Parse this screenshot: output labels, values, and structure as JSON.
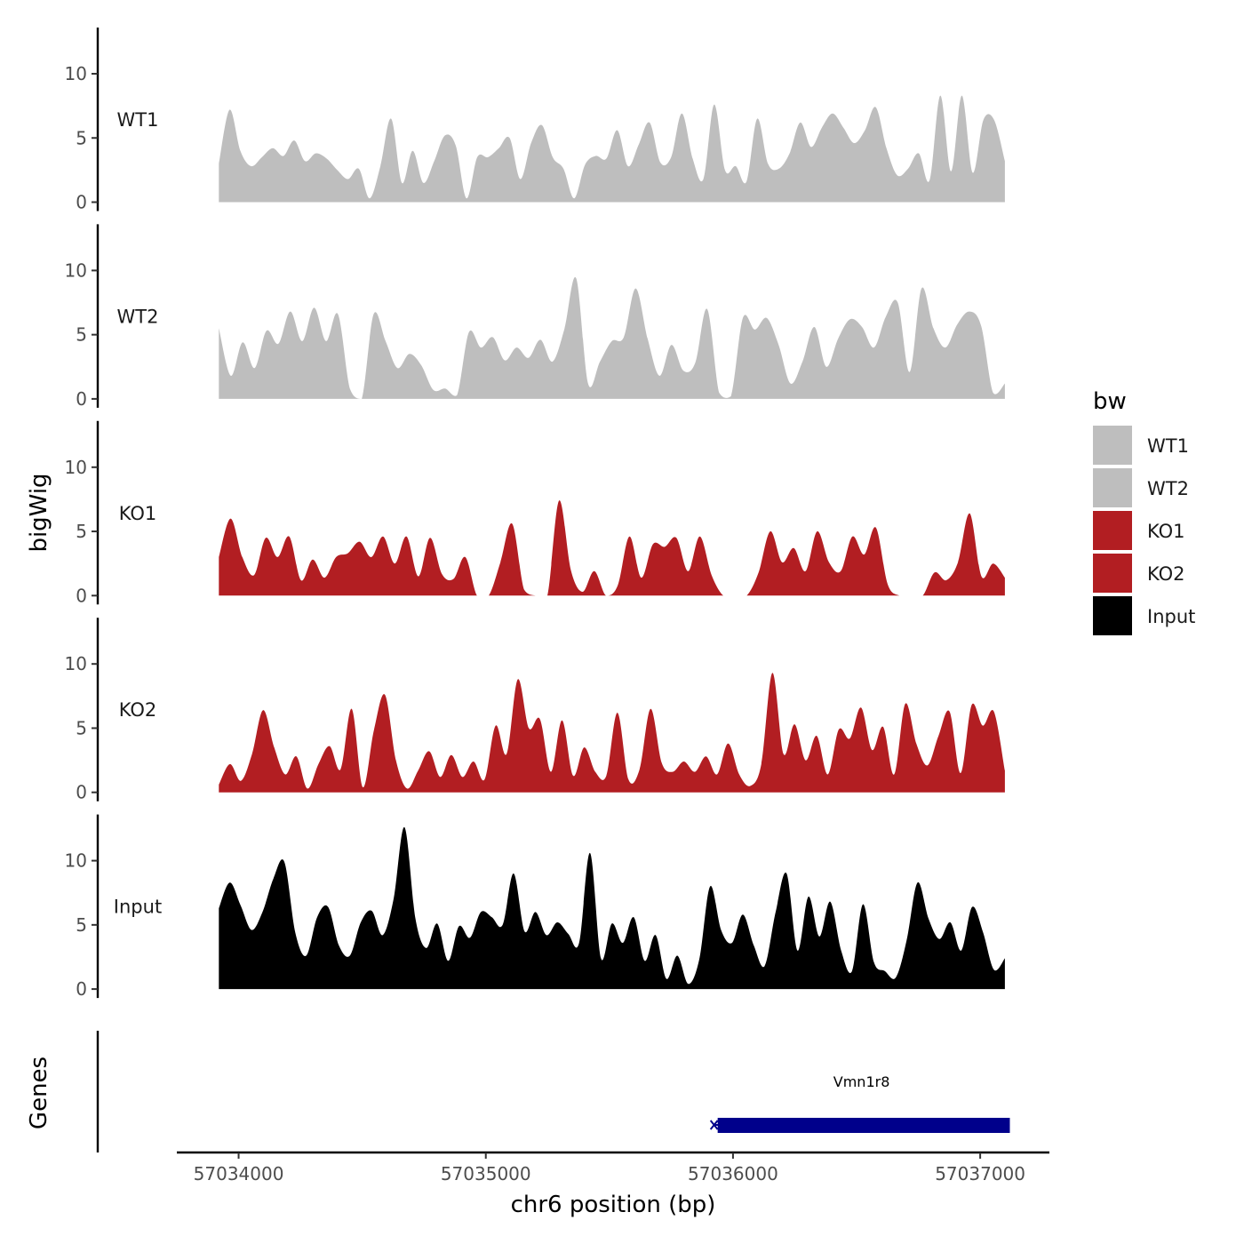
{
  "chart_data": {
    "type": "area",
    "title": "",
    "xlabel": "chr6 position (bp)",
    "ylabel": "bigWig",
    "genes_label": "Genes",
    "xlim": [
      57033750,
      57037280
    ],
    "data_x_range": [
      57033920,
      57037100
    ],
    "ylim": [
      0,
      14
    ],
    "x_ticks": [
      57034000,
      57035000,
      57036000,
      57037000
    ],
    "x_tick_labels": [
      "57034000",
      "57035000",
      "57036000",
      "57037000"
    ],
    "y_ticks": [
      0,
      5,
      10
    ],
    "y_tick_labels": [
      "0",
      "5",
      "10"
    ],
    "legend": {
      "title": "bw",
      "entries": [
        {
          "label": "WT1",
          "color": "#bebebe"
        },
        {
          "label": "WT2",
          "color": "#bebebe"
        },
        {
          "label": "KO1",
          "color": "#b21e22"
        },
        {
          "label": "KO2",
          "color": "#b21e22"
        },
        {
          "label": "Input",
          "color": "#000000"
        }
      ]
    },
    "series": [
      {
        "name": "WT1",
        "label": "WT1",
        "color": "#bebebe",
        "values": [
          3,
          7.2,
          4,
          2.8,
          3.5,
          4.2,
          3.6,
          4.8,
          3.2,
          3.8,
          3.4,
          2.5,
          1.8,
          2.6,
          0.3,
          2.8,
          6.5,
          1.5,
          4,
          1.5,
          3.2,
          5.2,
          4.4,
          0.3,
          3.5,
          3.5,
          4.2,
          5,
          1.8,
          4.6,
          6,
          3.5,
          2.6,
          0.3,
          2.9,
          3.6,
          3.4,
          5.6,
          2.8,
          4.5,
          6.2,
          3.1,
          3.5,
          6.9,
          3.4,
          1.8,
          7.6,
          2.5,
          2.8,
          1.6,
          6.5,
          3,
          2.6,
          3.8,
          6.2,
          4.3,
          5.8,
          6.9,
          5.8,
          4.6,
          5.6,
          7.4,
          4.2,
          2.1,
          2.6,
          3.8,
          1.7,
          8.3,
          2.4,
          8.3,
          2.3,
          6.4,
          6.4,
          3.2
        ]
      },
      {
        "name": "WT2",
        "label": "WT2",
        "color": "#bebebe",
        "values": [
          5.5,
          1.8,
          4.4,
          2.4,
          5.3,
          4.3,
          6.8,
          4.5,
          7.1,
          4.5,
          6.6,
          0.8,
          0,
          6.6,
          4.5,
          2.4,
          3.5,
          2.6,
          0.7,
          0.8,
          0.3,
          5.2,
          4,
          4.8,
          3,
          4,
          3.2,
          4.6,
          2.9,
          5.4,
          9.4,
          1.2,
          2.9,
          4.5,
          4.8,
          8.6,
          4.7,
          1.8,
          4.2,
          2.2,
          2.8,
          7,
          0.5,
          0.2,
          6.3,
          5.4,
          6.3,
          4.2,
          1.2,
          2.9,
          5.6,
          2.5,
          4.7,
          6.2,
          5.6,
          4,
          6.4,
          7.5,
          2.1,
          8.6,
          5.5,
          4,
          5.8,
          6.8,
          5.7,
          0.5,
          1.2
        ]
      },
      {
        "name": "KO1",
        "label": "KO1",
        "color": "#b21e22",
        "values": [
          3,
          6,
          3,
          1.6,
          4.5,
          3,
          4.6,
          1.2,
          2.8,
          1.4,
          3,
          3.3,
          4.2,
          3,
          4.6,
          2.5,
          4.6,
          1.5,
          4.5,
          1.7,
          1.3,
          3,
          0,
          0,
          2.6,
          5.6,
          0.5,
          0,
          0,
          7.4,
          2,
          0.3,
          1.9,
          0,
          0.8,
          4.6,
          1.4,
          4,
          3.8,
          4.5,
          1.9,
          4.6,
          1.6,
          0,
          0,
          0,
          1.8,
          5,
          2.6,
          3.7,
          1.9,
          5,
          2.6,
          1.9,
          4.6,
          3.2,
          5.3,
          0.9,
          0,
          0,
          0,
          1.8,
          1.2,
          2.6,
          6.4,
          1.5,
          2.5,
          1.4
        ]
      },
      {
        "name": "KO2",
        "label": "KO2",
        "color": "#b21e22",
        "values": [
          0.6,
          2.2,
          0.9,
          3,
          6.4,
          3.5,
          1.4,
          2.8,
          0.3,
          2.2,
          3.6,
          1.8,
          6.5,
          0.4,
          4.8,
          7.6,
          2.5,
          0.3,
          1.7,
          3.2,
          1.2,
          2.9,
          1.2,
          2.4,
          1,
          5.2,
          3,
          8.8,
          5,
          5.7,
          1.6,
          5.6,
          1.3,
          3.5,
          1.6,
          1.3,
          6.2,
          1,
          1.8,
          6.5,
          2.3,
          1.6,
          2.4,
          1.6,
          2.8,
          1.4,
          3.8,
          1.4,
          0.5,
          2.2,
          9.3,
          3,
          5.3,
          2.5,
          4.4,
          1.4,
          4.9,
          4.2,
          6.6,
          3.3,
          5.1,
          1.4,
          6.9,
          3.8,
          2.1,
          4.4,
          6.3,
          1.5,
          6.8,
          5.2,
          6.3,
          1.7
        ]
      },
      {
        "name": "Input",
        "label": "Input",
        "color": "#000000",
        "values": [
          6.3,
          8.3,
          6.5,
          4.6,
          6,
          8.6,
          9.9,
          4.4,
          2.6,
          5.6,
          6.4,
          3.4,
          2.6,
          5.2,
          6.1,
          4.2,
          7,
          12.6,
          5.5,
          3.2,
          5.1,
          2.2,
          4.9,
          4,
          6,
          5.6,
          5,
          9,
          4.5,
          6,
          4.2,
          5.2,
          4.3,
          3.6,
          10.6,
          2.4,
          5.1,
          3.6,
          5.6,
          2.2,
          4.2,
          0.8,
          2.6,
          0.4,
          2.3,
          8,
          4.6,
          3.6,
          5.8,
          3.4,
          1.8,
          6,
          9,
          3,
          7.2,
          4.1,
          6.8,
          3,
          1.4,
          6.6,
          2.1,
          1.4,
          0.9,
          3.8,
          8.3,
          5.5,
          3.9,
          5.2,
          3,
          6.4,
          4.4,
          1.5,
          2.4
        ]
      }
    ],
    "genes": [
      {
        "name": "Vmn1r8",
        "start": 57035920,
        "end": 57037120,
        "color": "#00008b"
      }
    ]
  }
}
